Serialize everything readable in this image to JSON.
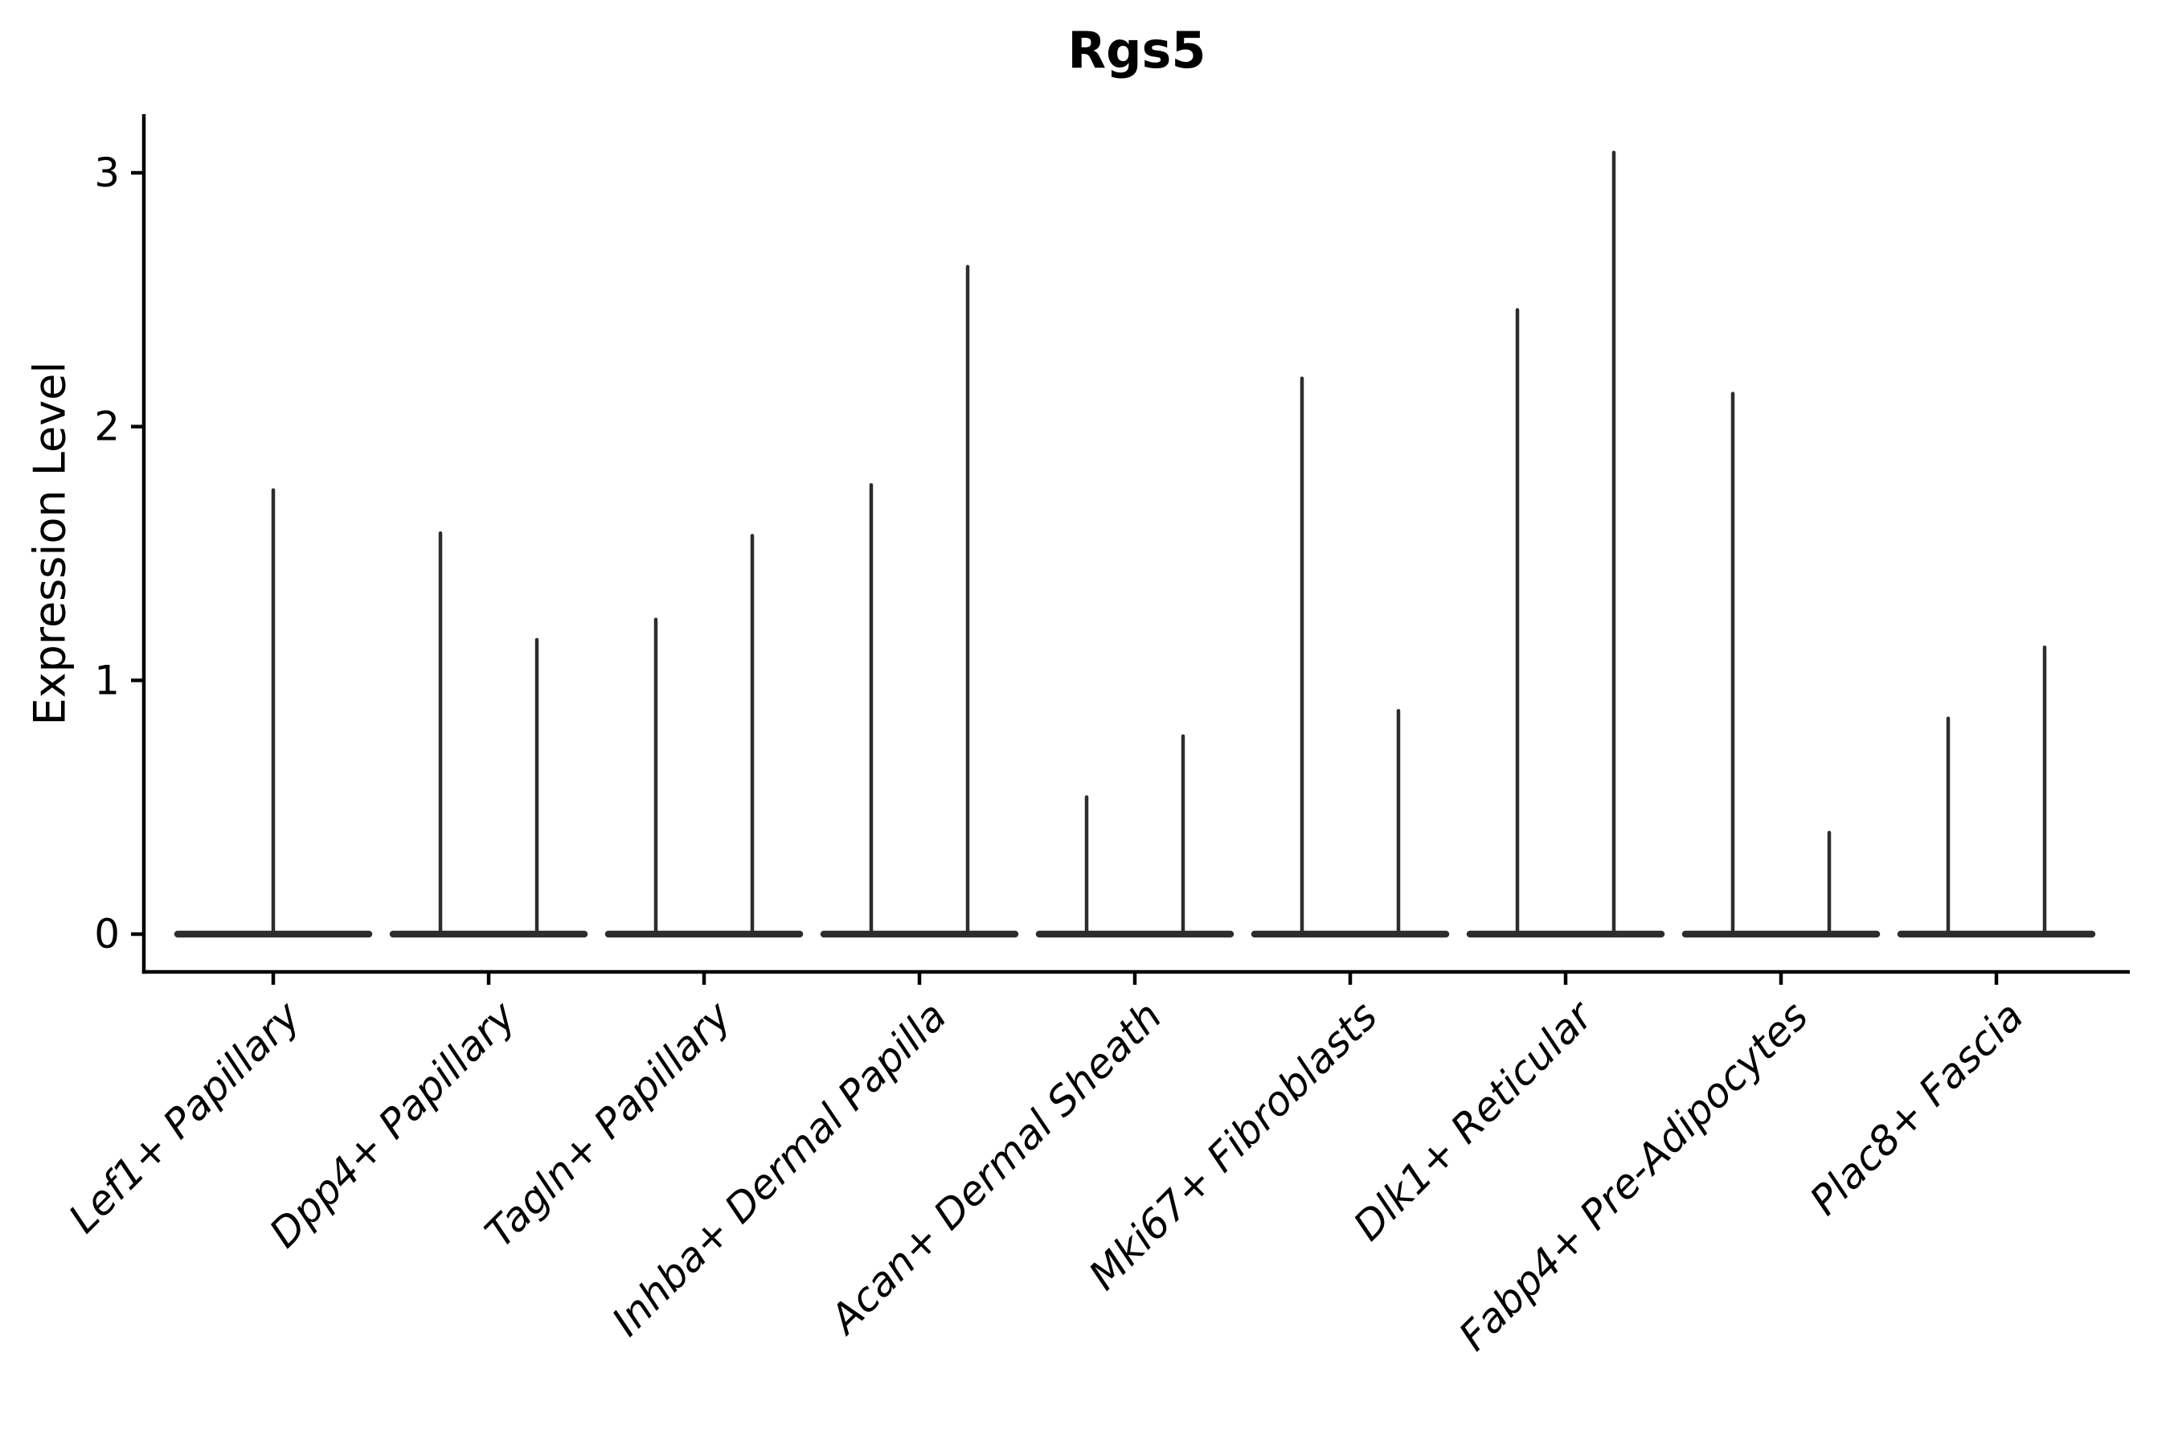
{
  "figure": {
    "title": "Rgs5",
    "ylabel": "Expression Level"
  },
  "style": {
    "violin_color": "#2d2d2d",
    "axis_color": "#000000",
    "text_color": "#000000",
    "background_color": "#ffffff"
  },
  "chart_data": {
    "type": "violin",
    "title": "Rgs5",
    "xlabel": "",
    "ylabel": "Expression Level",
    "yticks": [
      0,
      1,
      2,
      3
    ],
    "ylim": [
      -0.15,
      3.23
    ],
    "grid": false,
    "legend": null,
    "style_note": "Seurat-style violin plot: each violin is collapsed to a flat horizontal bar at expression 0 with a thin vertical spike reaching its maximum expression value; most categories contain a pair of violins",
    "categories": [
      "Lef1+ Papillary",
      "Dpp4+ Papillary",
      "Tagln+ Papillary",
      "Inhba+ Dermal Papilla",
      "Acan+ Dermal Sheath",
      "Mki67+ Fibroblasts",
      "Dlk1+ Reticular",
      "Fabp4+ Pre-Adipocytes",
      "Plac8+ Fascia"
    ],
    "series": [
      {
        "category": "Lef1+ Papillary",
        "violins": [
          {
            "position": "center",
            "max_expression": 1.75
          }
        ]
      },
      {
        "category": "Dpp4+ Papillary",
        "violins": [
          {
            "position": "left",
            "max_expression": 1.58
          },
          {
            "position": "right",
            "max_expression": 1.16
          }
        ]
      },
      {
        "category": "Tagln+ Papillary",
        "violins": [
          {
            "position": "left",
            "max_expression": 1.24
          },
          {
            "position": "right",
            "max_expression": 1.57
          }
        ]
      },
      {
        "category": "Inhba+ Dermal Papilla",
        "violins": [
          {
            "position": "left",
            "max_expression": 1.77
          },
          {
            "position": "right",
            "max_expression": 2.63
          }
        ]
      },
      {
        "category": "Acan+ Dermal Sheath",
        "violins": [
          {
            "position": "left",
            "max_expression": 0.54
          },
          {
            "position": "right",
            "max_expression": 0.78
          }
        ]
      },
      {
        "category": "Mki67+ Fibroblasts",
        "violins": [
          {
            "position": "left",
            "max_expression": 2.19
          },
          {
            "position": "right",
            "max_expression": 0.88
          }
        ]
      },
      {
        "category": "Dlk1+ Reticular",
        "violins": [
          {
            "position": "left",
            "max_expression": 2.46
          },
          {
            "position": "right",
            "max_expression": 3.08
          }
        ]
      },
      {
        "category": "Fabp4+ Pre-Adipocytes",
        "violins": [
          {
            "position": "left",
            "max_expression": 2.13
          },
          {
            "position": "right",
            "max_expression": 0.4
          }
        ]
      },
      {
        "category": "Plac8+ Fascia",
        "violins": [
          {
            "position": "left",
            "max_expression": 0.85
          },
          {
            "position": "right",
            "max_expression": 1.13
          }
        ]
      }
    ]
  }
}
